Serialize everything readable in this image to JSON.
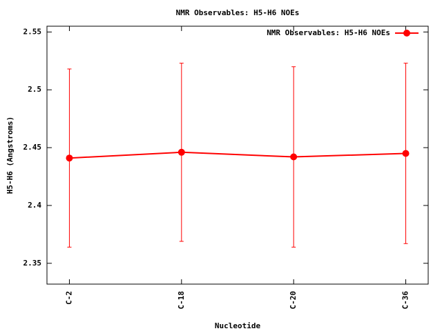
{
  "chart_data": {
    "type": "line",
    "title": "NMR Observables: H5-H6 NOEs",
    "x_label": "Nucleotide",
    "y_label": "H5-H6 (Angstroms)",
    "categories": [
      "C-2",
      "C-18",
      "C-20",
      "C-36"
    ],
    "series": [
      {
        "name": "NMR Observables: H5-H6 NOEs",
        "color": "#ff0000",
        "values": [
          2.441,
          2.446,
          2.442,
          2.445
        ],
        "errors": [
          0.077,
          0.077,
          0.078,
          0.078
        ]
      }
    ],
    "ylim": [
      2.332,
      2.555
    ],
    "yticks": [
      2.35,
      2.4,
      2.45,
      2.5,
      2.55
    ],
    "legend": "top-right"
  }
}
